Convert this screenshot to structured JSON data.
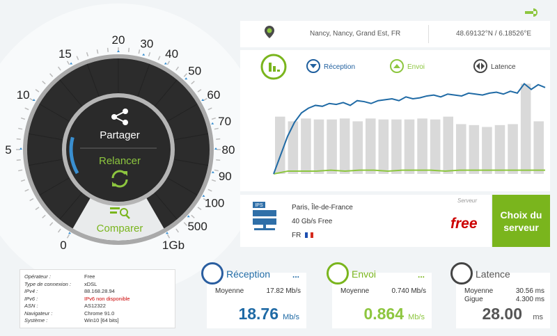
{
  "header": {
    "location": "Nancy, Nancy, Grand Est, FR",
    "coordinates": "48.69132°N / 6.18526°E"
  },
  "gauge": {
    "labels": [
      "0",
      "5",
      "10",
      "15",
      "20",
      "30",
      "40",
      "50",
      "60",
      "70",
      "80",
      "90",
      "100",
      "500",
      "1Gb"
    ],
    "share": "Partager",
    "restart": "Relancer",
    "compare": "Comparer"
  },
  "graph": {
    "legend": [
      "Réception",
      "Envoi",
      "Latence"
    ],
    "ylim": [
      0,
      100
    ],
    "latence": [
      61,
      56,
      59,
      58,
      58,
      59,
      56,
      59,
      58,
      58,
      58,
      59,
      58,
      61,
      53,
      52,
      50,
      52,
      53,
      96,
      56
    ],
    "reception": [
      0,
      20,
      40,
      55,
      65,
      70,
      73,
      72,
      75,
      74,
      76,
      73,
      78,
      77,
      75,
      78,
      79,
      80,
      78,
      82,
      80,
      81,
      83,
      84,
      82,
      85,
      84,
      83,
      86,
      85,
      84,
      86,
      87,
      85,
      88,
      86,
      96,
      90,
      95,
      92
    ],
    "envoi": [
      0,
      3,
      3,
      3,
      4,
      3,
      4,
      4,
      3,
      4,
      4,
      4,
      3,
      4,
      4,
      4,
      4,
      4,
      4,
      4
    ]
  },
  "server": {
    "icon_label": "IPS",
    "city": "Paris, Île-de-France",
    "bandwidth": "40 Gb/s Free",
    "country": "FR",
    "label": "Serveur",
    "provider": "free",
    "choose": "Choix du serveur"
  },
  "info": {
    "rows": [
      [
        "Opérateur :",
        "Free"
      ],
      [
        "Type de connexion :",
        "xDSL"
      ],
      [
        "IPv4 :",
        "88.168.28.94"
      ],
      [
        "IPv6 :",
        "IPv6 non disponible"
      ],
      [
        "ASN :",
        "AS12322"
      ],
      [
        "Navigateur :",
        "Chrome 91.0"
      ],
      [
        "Système :",
        "Win10 [64 bits]"
      ]
    ]
  },
  "panels": [
    {
      "title": "Réception",
      "more": "...",
      "rows": [
        [
          "Moyenne",
          "17.82 Mb/s"
        ]
      ],
      "value": "18.76",
      "unit": "Mb/s"
    },
    {
      "title": "Envoi",
      "more": "...",
      "rows": [
        [
          "Moyenne",
          "0.740 Mb/s"
        ]
      ],
      "value": "0.864",
      "unit": "Mb/s"
    },
    {
      "title": "Latence",
      "rows": [
        [
          "Moyenne",
          "30.56 ms"
        ],
        [
          "Gigue",
          "4.300 ms"
        ]
      ],
      "value": "28.00",
      "unit": "ms"
    }
  ]
}
